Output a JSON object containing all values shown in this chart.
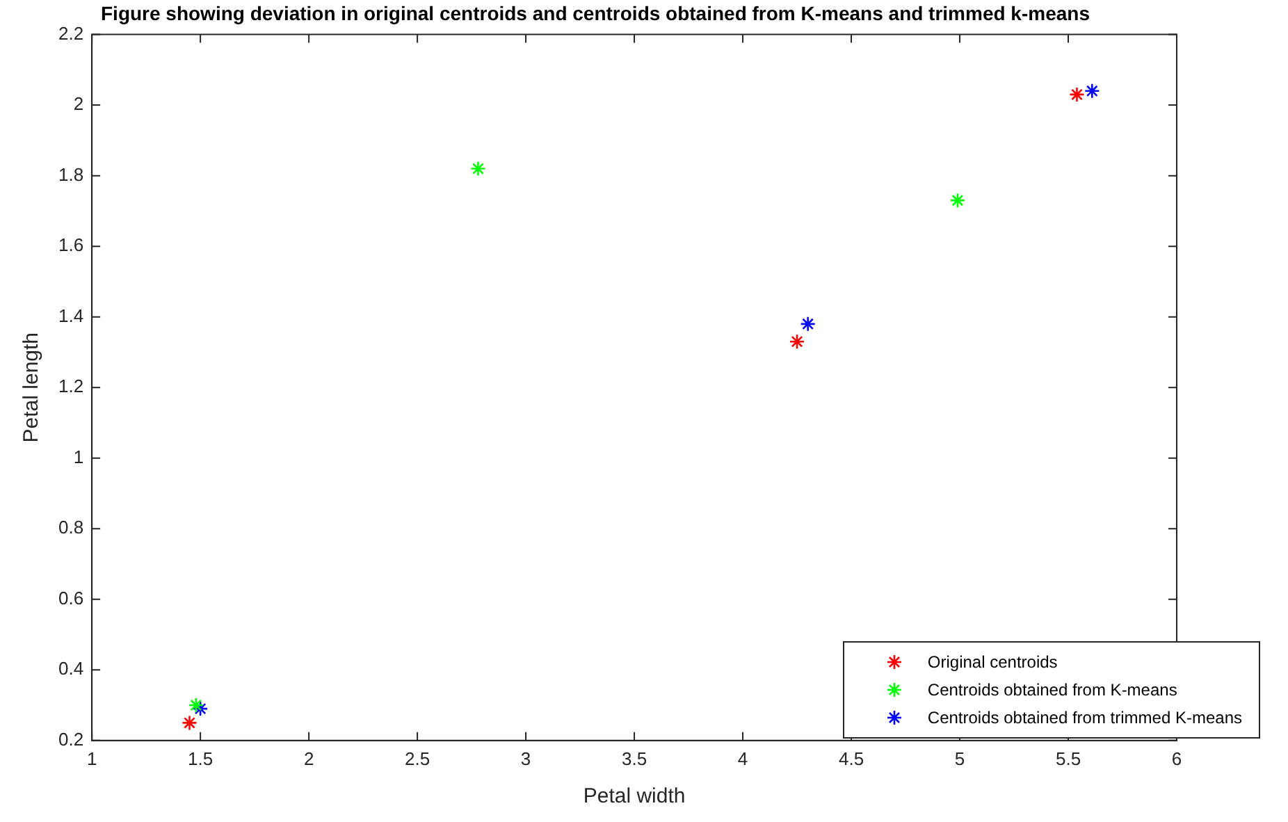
{
  "chart_data": {
    "type": "scatter",
    "title": "Figure showing deviation in original centroids and centroids obtained from K-means and trimmed k-means",
    "xlabel": "Petal width",
    "ylabel": "Petal length",
    "xlim": [
      1,
      6
    ],
    "xticks": [
      1,
      1.5,
      2,
      2.5,
      3,
      3.5,
      4,
      4.5,
      5,
      5.5,
      6
    ],
    "ylim": [
      0.2,
      2.2
    ],
    "yticks": [
      0.2,
      0.4,
      0.6,
      0.8,
      1,
      1.2,
      1.4,
      1.6,
      1.8,
      2,
      2.2
    ],
    "grid": false,
    "legend": "bottom right",
    "marker": "cross",
    "series": [
      {
        "name": "Original centroids",
        "color": "#ff0000",
        "x": [
          1.45,
          4.25,
          5.54
        ],
        "values": [
          0.25,
          1.33,
          2.03
        ]
      },
      {
        "name": "Centroids obtained from K-means",
        "color": "#00ff00",
        "x": [
          1.48,
          2.78,
          4.99
        ],
        "values": [
          0.3,
          1.82,
          1.73
        ]
      },
      {
        "name": "Centroids obtained from trimmed K-means",
        "color": "#0000ff",
        "x": [
          1.5,
          4.3,
          5.61
        ],
        "values": [
          0.29,
          1.38,
          2.04
        ]
      }
    ]
  }
}
